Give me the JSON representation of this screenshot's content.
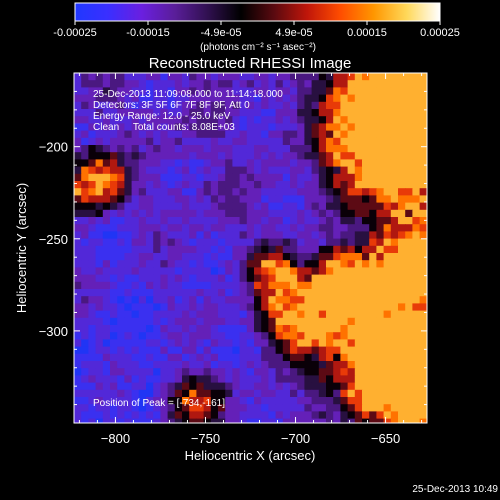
{
  "colorbar": {
    "ticks": [
      "-0.00025",
      "-0.00015",
      "-4.9e-05",
      "4.9e-05",
      "0.00015",
      "0.00025"
    ],
    "units": "(photons cm⁻² s⁻¹ asec⁻²)",
    "range": [
      -0.00025,
      0.00025
    ],
    "stops": [
      "#2038ff",
      "#3a2fff",
      "#6a1fe0",
      "#5a1e9a",
      "#301050",
      "#000000",
      "#5a0a10",
      "#c0160a",
      "#ff4d00",
      "#ff9600",
      "#ffd85a",
      "#ffffff"
    ]
  },
  "title": "Reconstructed RHESSI Image",
  "annotations": {
    "time_range": "25-Dec-2013 11:09:08.000 to 11:14:18.000",
    "detectors": "Detectors: 3F 5F 6F 7F 8F 9F, Att 0",
    "energy": "Energy Range: 12.0 - 25.0 keV",
    "method": "Clean     Total counts: 8.08E+03",
    "peak": "Position of Peak = [-734,-161]"
  },
  "footer_timestamp": "25-Dec-2013 10:49",
  "chart_data": {
    "type": "heatmap",
    "title": "Reconstructed RHESSI Image",
    "xlabel": "Heliocentric X (arcsec)",
    "ylabel": "Heliocentric Y (arcsec)",
    "xlim": [
      -823,
      -627
    ],
    "ylim": [
      -350,
      -160
    ],
    "xticks": [
      -800,
      -750,
      -700,
      -650
    ],
    "yticks": [
      -200,
      -250,
      -300
    ],
    "peak_position": [
      -734,
      -161
    ],
    "color_scale": [
      -0.00025,
      0.00025
    ],
    "grid": false
  }
}
